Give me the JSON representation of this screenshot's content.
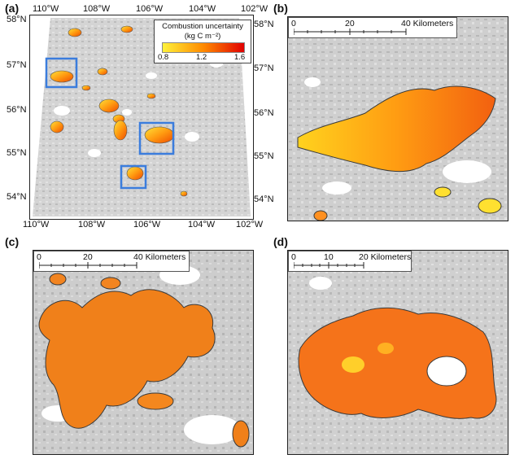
{
  "panels": {
    "a": "(a)",
    "b": "(b)",
    "c": "(c)",
    "d": "(d)"
  },
  "panel_a": {
    "top_lon_labels": [
      "110°W",
      "108°W",
      "106°W",
      "104°W",
      "102°W"
    ],
    "bottom_lon_labels": [
      "110°W",
      "108°W",
      "106°W",
      "104°W",
      "102°W"
    ],
    "left_lat_labels": [
      "58°N",
      "57°N",
      "56°N",
      "55°N",
      "54°N"
    ],
    "right_lat_labels": [
      "58°N",
      "57°N",
      "56°N",
      "55°N",
      "54°N"
    ]
  },
  "legend": {
    "title_line1": "Combustion uncertainty",
    "title_line2": "(kg C m⁻²)",
    "ticks": [
      "0.8",
      "1.2",
      "1.6"
    ],
    "colors": {
      "low": "#fff23a",
      "mid": "#ff8a00",
      "high": "#e10000"
    }
  },
  "scalebars": {
    "b": {
      "ticks": [
        "0",
        "20",
        "40 Kilometers"
      ]
    },
    "c": {
      "ticks": [
        "0",
        "20",
        "40 Kilometers"
      ]
    },
    "d": {
      "ticks": [
        "0",
        "10",
        "20 Kilometers"
      ]
    }
  },
  "colors": {
    "highlight_box": "#3b7ddd",
    "land_gray": "#cfcfcf",
    "water": "#ffffff"
  }
}
